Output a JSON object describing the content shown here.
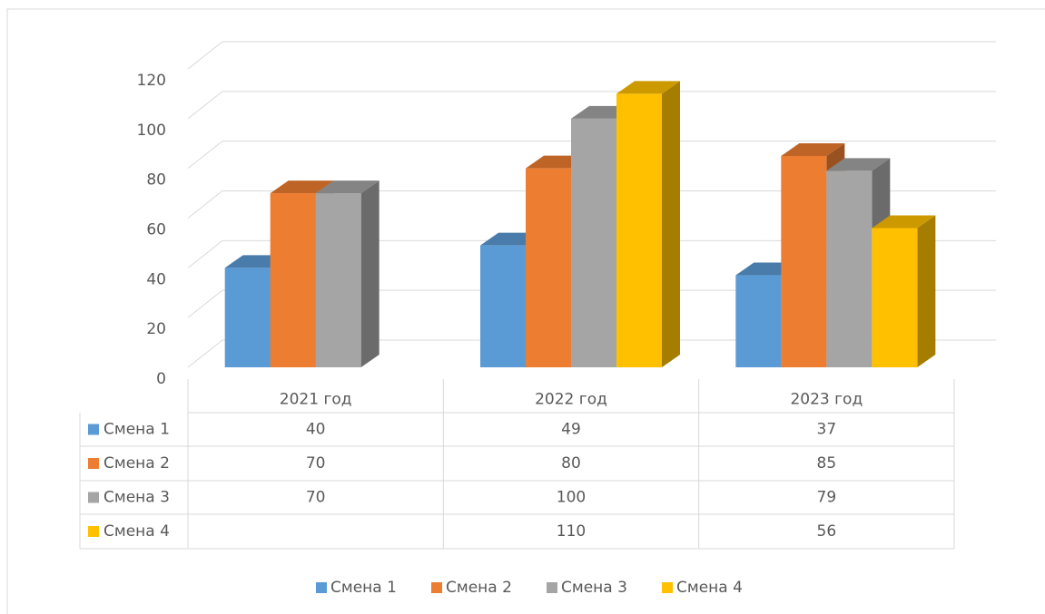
{
  "chart_data": {
    "type": "bar3d",
    "categories": [
      "2021 год",
      "2022 год",
      "2023 год"
    ],
    "series": [
      {
        "name": "Смена 1",
        "color": "#5b9bd5",
        "values": [
          40,
          49,
          37
        ]
      },
      {
        "name": "Смена 2",
        "color": "#ed7d31",
        "values": [
          70,
          80,
          85
        ]
      },
      {
        "name": "Смена 3",
        "color": "#a5a5a5",
        "values": [
          70,
          100,
          79
        ]
      },
      {
        "name": "Смена 4",
        "color": "#ffc000",
        "values": [
          null,
          110,
          56
        ]
      }
    ],
    "ylim": [
      0,
      120
    ],
    "yticks": [
      0,
      20,
      40,
      60,
      80,
      100,
      120
    ],
    "grid": true,
    "data_table": true,
    "legend": "bottom"
  }
}
